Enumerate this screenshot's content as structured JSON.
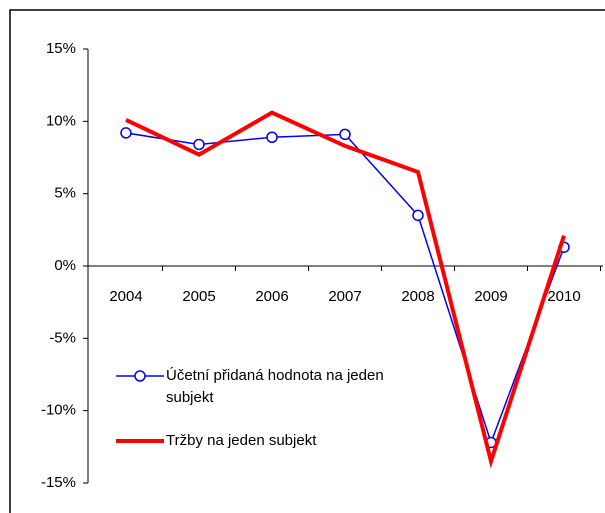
{
  "chart_data": {
    "type": "line",
    "categories": [
      "2004",
      "2005",
      "2006",
      "2007",
      "2008",
      "2009",
      "2010"
    ],
    "series": [
      {
        "name": "Účetní přidaná hodnota na jeden subjekt",
        "color": "#0000ff",
        "marker": true,
        "values": [
          9.2,
          8.4,
          8.9,
          9.1,
          3.5,
          -12.2,
          1.3
        ]
      },
      {
        "name": "Tržby na jeden subjekt",
        "color": "#ff0000",
        "marker": false,
        "values": [
          10.1,
          7.7,
          10.6,
          8.3,
          6.5,
          -13.5,
          2.1
        ]
      }
    ],
    "ylim": [
      -15,
      15
    ],
    "yticks": [
      {
        "value": -15,
        "label": "-15%"
      },
      {
        "value": -10,
        "label": "-10%"
      },
      {
        "value": -5,
        "label": "-5%"
      },
      {
        "value": 0,
        "label": "0%"
      },
      {
        "value": 5,
        "label": "5%"
      },
      {
        "value": 10,
        "label": "10%"
      },
      {
        "value": 15,
        "label": "15%"
      }
    ],
    "grid": false
  }
}
